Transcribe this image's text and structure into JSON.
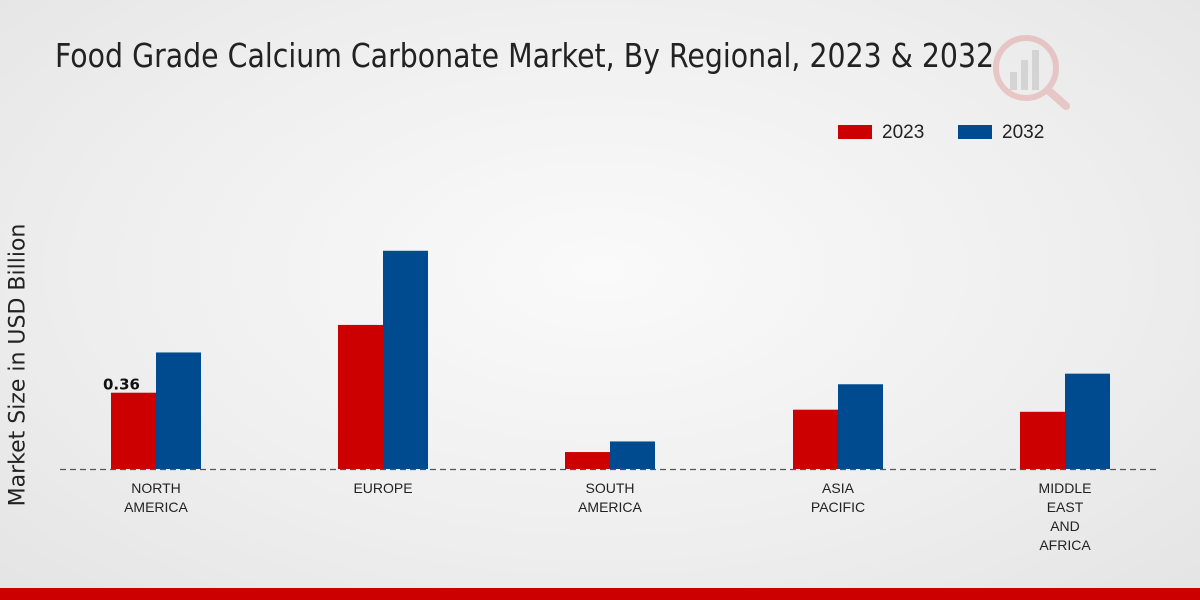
{
  "chart_data": {
    "type": "bar",
    "title": "Food Grade Calcium Carbonate Market, By Regional, 2023 & 2032",
    "xlabel": "",
    "ylabel": "Market Size in USD Billion",
    "categories": [
      "NORTH\nAMERICA",
      "EUROPE",
      "SOUTH\nAMERICA",
      "ASIA\nPACIFIC",
      "MIDDLE\nEAST\nAND\nAFRICA"
    ],
    "series": [
      {
        "name": "2023",
        "color": "#cc0000",
        "values": [
          0.36,
          0.68,
          0.08,
          0.28,
          0.27
        ]
      },
      {
        "name": "2032",
        "color": "#004a8f",
        "values": [
          0.55,
          1.03,
          0.13,
          0.4,
          0.45
        ]
      }
    ],
    "data_labels": [
      {
        "series": 0,
        "index": 0,
        "text": "0.36"
      }
    ],
    "ylim": [
      0,
      1.6
    ],
    "legend_position": "top-right",
    "grid": false
  },
  "theme": {
    "accent_bar": "#cc0000",
    "baseline": "#555555"
  }
}
